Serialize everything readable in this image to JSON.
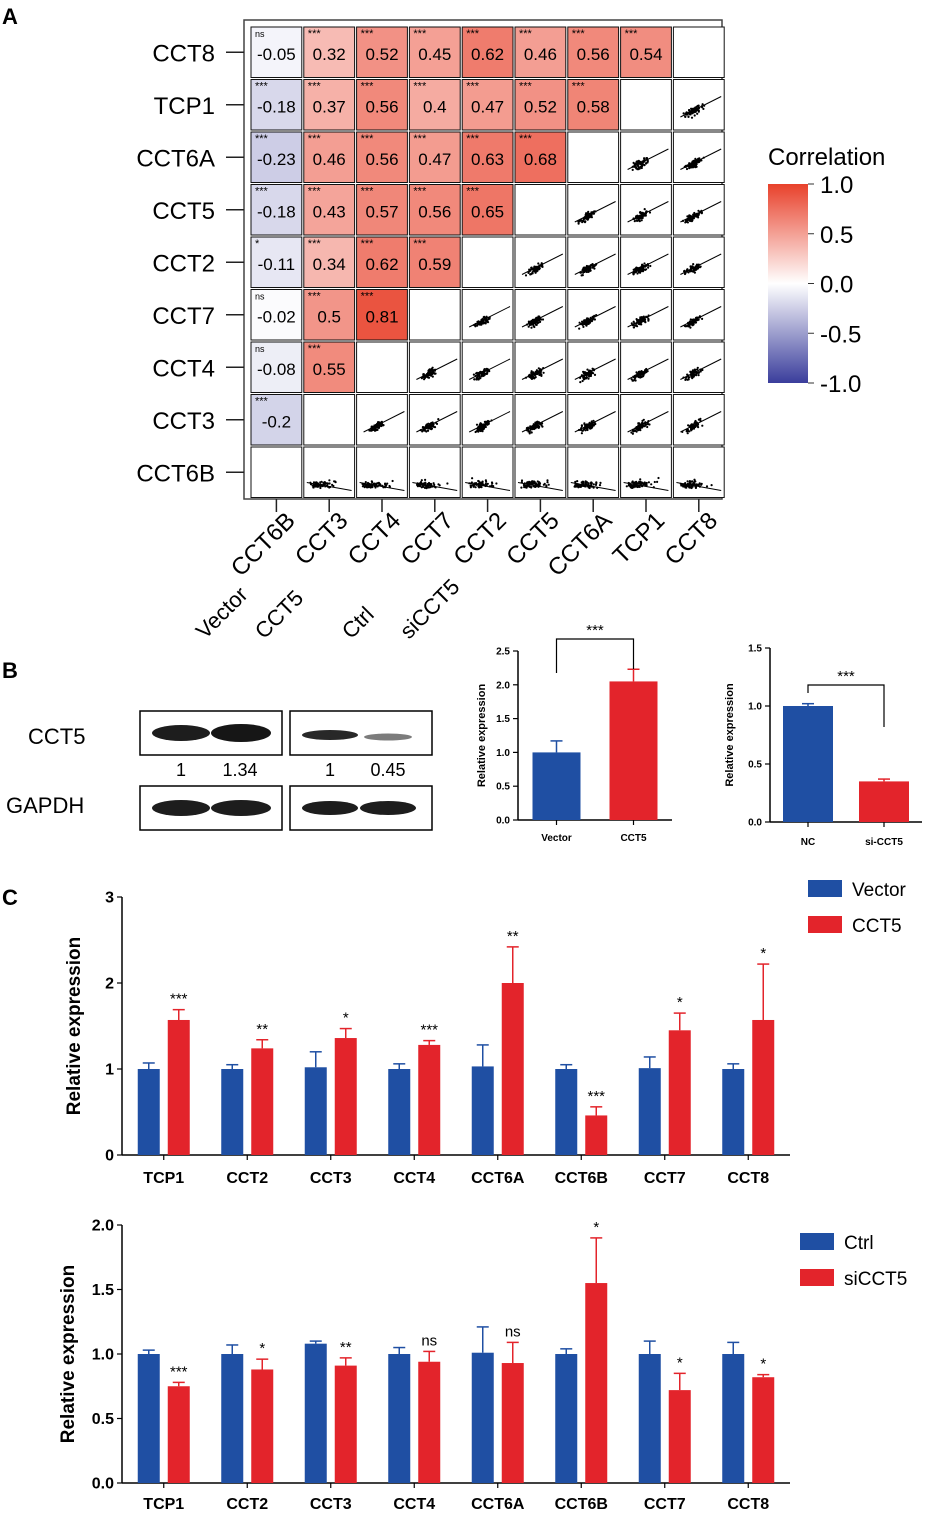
{
  "colors": {
    "vector": "#1f4fa3",
    "cct5": "#e3242b",
    "pos": "#e8412b",
    "neg": "#3a3d9c",
    "mid": "#ffffff"
  },
  "panel_labels": {
    "a": "A",
    "b": "B",
    "c": "C"
  },
  "corr_matrix": {
    "type": "heatmap",
    "row_labels": [
      "CCT8",
      "TCP1",
      "CCT6A",
      "CCT5",
      "CCT2",
      "CCT7",
      "CCT4",
      "CCT3",
      "CCT6B"
    ],
    "col_labels": [
      "CCT6B",
      "CCT3",
      "CCT4",
      "CCT7",
      "CCT2",
      "CCT5",
      "CCT6A",
      "TCP1",
      "CCT8"
    ],
    "legend_title": "Correlation",
    "legend_ticks": [
      "1.0",
      "0.5",
      "0.0",
      "-0.5",
      "-1.0"
    ],
    "legend_range": [
      -1,
      1
    ],
    "cells": [
      [
        {
          "v": "-0.05",
          "s": "ns"
        },
        {
          "v": "0.32",
          "s": "***"
        },
        {
          "v": "0.52",
          "s": "***"
        },
        {
          "v": "0.45",
          "s": "***"
        },
        {
          "v": "0.62",
          "s": "***"
        },
        {
          "v": "0.46",
          "s": "***"
        },
        {
          "v": "0.56",
          "s": "***"
        },
        {
          "v": "0.54",
          "s": "***"
        }
      ],
      [
        {
          "v": "-0.18",
          "s": "***"
        },
        {
          "v": "0.37",
          "s": "***"
        },
        {
          "v": "0.56",
          "s": "***"
        },
        {
          "v": "0.4",
          "s": "***"
        },
        {
          "v": "0.47",
          "s": "***"
        },
        {
          "v": "0.52",
          "s": "***"
        },
        {
          "v": "0.58",
          "s": "***"
        }
      ],
      [
        {
          "v": "-0.23",
          "s": "***"
        },
        {
          "v": "0.46",
          "s": "***"
        },
        {
          "v": "0.56",
          "s": "***"
        },
        {
          "v": "0.47",
          "s": "***"
        },
        {
          "v": "0.63",
          "s": "***"
        },
        {
          "v": "0.68",
          "s": "***"
        }
      ],
      [
        {
          "v": "-0.18",
          "s": "***"
        },
        {
          "v": "0.43",
          "s": "***"
        },
        {
          "v": "0.57",
          "s": "***"
        },
        {
          "v": "0.56",
          "s": "***"
        },
        {
          "v": "0.65",
          "s": "***"
        }
      ],
      [
        {
          "v": "-0.11",
          "s": "*"
        },
        {
          "v": "0.34",
          "s": "***"
        },
        {
          "v": "0.62",
          "s": "***"
        },
        {
          "v": "0.59",
          "s": "***"
        }
      ],
      [
        {
          "v": "-0.02",
          "s": "ns"
        },
        {
          "v": "0.5",
          "s": "***"
        },
        {
          "v": "0.81",
          "s": "***"
        }
      ],
      [
        {
          "v": "-0.08",
          "s": "ns"
        },
        {
          "v": "0.55",
          "s": "***"
        }
      ],
      [
        {
          "v": "-0.2",
          "s": "***"
        }
      ],
      []
    ]
  },
  "western_blot": {
    "left_lanes": [
      "Vector",
      "CCT5"
    ],
    "right_lanes": [
      "Ctrl",
      "siCCT5"
    ],
    "rows": [
      "CCT5",
      "GAPDH"
    ],
    "left_values": [
      "1",
      "1.34"
    ],
    "right_values": [
      "1",
      "0.45"
    ]
  },
  "chart_data": [
    {
      "type": "bar",
      "categories": [
        "Vector",
        "CCT5"
      ],
      "values": [
        1.0,
        2.05
      ],
      "errors": [
        0.17,
        0.18
      ],
      "ylabel": "Relative expression",
      "ylim": [
        0,
        2.5
      ],
      "yticks": [
        "0.0",
        "0.5",
        "1.0",
        "1.5",
        "2.0",
        "2.5"
      ],
      "significance": "***"
    },
    {
      "type": "bar",
      "categories": [
        "NC",
        "si-CCT5"
      ],
      "values": [
        1.0,
        0.35
      ],
      "errors": [
        0.02,
        0.02
      ],
      "ylabel": "Relative expression",
      "ylim": [
        0,
        1.5
      ],
      "yticks": [
        "0.0",
        "0.5",
        "1.0",
        "1.5"
      ],
      "significance": "***"
    },
    {
      "type": "bar",
      "categories": [
        "TCP1",
        "CCT2",
        "CCT3",
        "CCT4",
        "CCT6A",
        "CCT6B",
        "CCT7",
        "CCT8"
      ],
      "series": [
        {
          "name": "Vector",
          "values": [
            1.0,
            1.0,
            1.02,
            1.0,
            1.03,
            1.0,
            1.01,
            1.0
          ],
          "errors": [
            0.07,
            0.05,
            0.18,
            0.06,
            0.25,
            0.05,
            0.13,
            0.06
          ]
        },
        {
          "name": "CCT5",
          "values": [
            1.57,
            1.24,
            1.36,
            1.28,
            2.0,
            0.46,
            1.45,
            1.57
          ],
          "errors": [
            0.12,
            0.1,
            0.11,
            0.05,
            0.42,
            0.1,
            0.2,
            0.65
          ]
        }
      ],
      "significance": [
        "***",
        "**",
        "*",
        "***",
        "**",
        "***",
        "*",
        "*"
      ],
      "ylabel": "Relative expression",
      "ylim": [
        0,
        3
      ],
      "yticks": [
        "0",
        "1",
        "2",
        "3"
      ]
    },
    {
      "type": "bar",
      "categories": [
        "TCP1",
        "CCT2",
        "CCT3",
        "CCT4",
        "CCT6A",
        "CCT6B",
        "CCT7",
        "CCT8"
      ],
      "series": [
        {
          "name": "Ctrl",
          "values": [
            1.0,
            1.0,
            1.08,
            1.0,
            1.01,
            1.0,
            1.0,
            1.0
          ],
          "errors": [
            0.03,
            0.07,
            0.02,
            0.05,
            0.2,
            0.04,
            0.1,
            0.09
          ]
        },
        {
          "name": "siCCT5",
          "values": [
            0.75,
            0.88,
            0.91,
            0.94,
            0.93,
            1.55,
            0.72,
            0.82
          ],
          "errors": [
            0.03,
            0.08,
            0.06,
            0.08,
            0.16,
            0.35,
            0.13,
            0.02
          ]
        }
      ],
      "significance": [
        "***",
        "*",
        "**",
        "ns",
        "ns",
        "*",
        "*",
        "*"
      ],
      "ylabel": "Relative expression",
      "ylim": [
        0,
        2.0
      ],
      "yticks": [
        "0.0",
        "0.5",
        "1.0",
        "1.5",
        "2.0"
      ]
    }
  ]
}
